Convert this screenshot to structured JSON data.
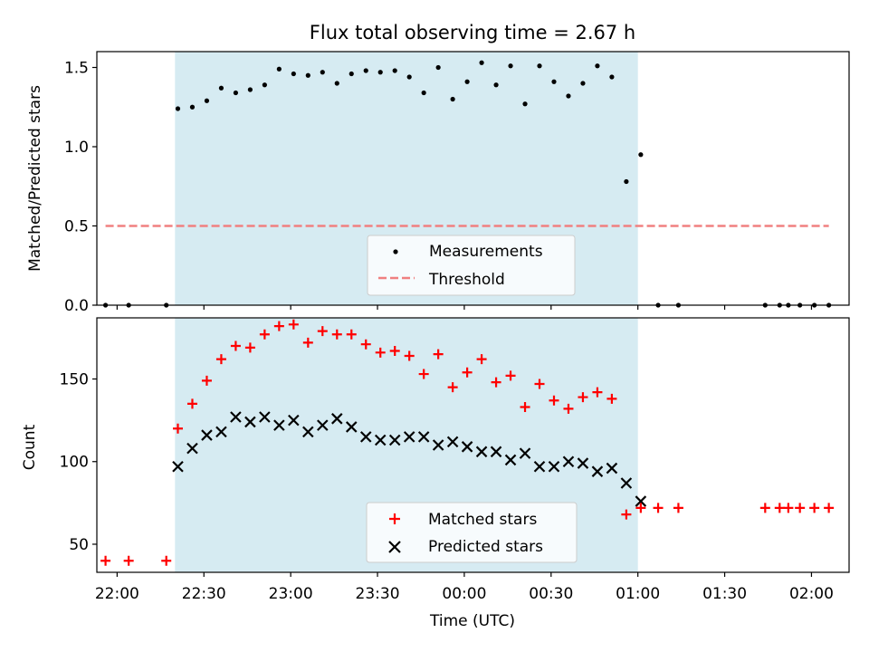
{
  "chart_data": [
    {
      "type": "scatter",
      "title": "Flux total observing time = 2.67 h",
      "xlabel": "",
      "ylabel": "Matched/Predicted stars",
      "xlim": [
        "21:53",
        "02:13"
      ],
      "ylim": [
        0,
        1.6
      ],
      "yticks": [
        "0.0",
        "0.5",
        "1.0",
        "1.5"
      ],
      "shaded_interval": [
        "22:20",
        "01:00"
      ],
      "legend_position": "lower center",
      "colors": {
        "shade": "#add8e6",
        "measurements": "#000000",
        "threshold": "#f08080"
      },
      "series": [
        {
          "name": "Measurements",
          "x": [
            "21:56",
            "22:04",
            "22:17",
            "22:21",
            "22:26",
            "22:31",
            "22:36",
            "22:41",
            "22:46",
            "22:51",
            "22:56",
            "23:01",
            "23:06",
            "23:11",
            "23:16",
            "23:21",
            "23:26",
            "23:31",
            "23:36",
            "23:41",
            "23:46",
            "23:51",
            "23:56",
            "00:01",
            "00:06",
            "00:11",
            "00:16",
            "00:21",
            "00:26",
            "00:31",
            "00:36",
            "00:41",
            "00:46",
            "00:51",
            "00:56",
            "01:01",
            "01:07",
            "01:14",
            "01:44",
            "01:49",
            "01:52",
            "01:56",
            "02:01",
            "02:06"
          ],
          "y": [
            0,
            0,
            0,
            1.24,
            1.25,
            1.29,
            1.37,
            1.34,
            1.36,
            1.39,
            1.49,
            1.46,
            1.45,
            1.47,
            1.4,
            1.46,
            1.48,
            1.47,
            1.48,
            1.44,
            1.34,
            1.5,
            1.3,
            1.41,
            1.53,
            1.39,
            1.51,
            1.27,
            1.51,
            1.41,
            1.32,
            1.4,
            1.51,
            1.44,
            0.78,
            0.95,
            0,
            0,
            0,
            0,
            0,
            0,
            0,
            0
          ]
        },
        {
          "name": "Threshold",
          "style": "dashed-line",
          "x": [
            "21:56",
            "02:06"
          ],
          "y": [
            0.5,
            0.5
          ]
        }
      ]
    },
    {
      "type": "scatter",
      "title": "",
      "xlabel": "Time (UTC)",
      "ylabel": "Count",
      "xlim": [
        "21:53",
        "02:13"
      ],
      "ylim": [
        33,
        187
      ],
      "yticks": [
        "50",
        "100",
        "150"
      ],
      "xticks": [
        "22:00",
        "22:30",
        "23:00",
        "23:30",
        "00:00",
        "00:30",
        "01:00",
        "01:30",
        "02:00"
      ],
      "shaded_interval": [
        "22:20",
        "01:00"
      ],
      "legend_position": "lower center",
      "colors": {
        "shade": "#add8e6",
        "matched": "#ff0000",
        "predicted": "#000000"
      },
      "series": [
        {
          "name": "Matched stars",
          "marker": "+",
          "x": [
            "21:56",
            "22:04",
            "22:17",
            "22:21",
            "22:26",
            "22:31",
            "22:36",
            "22:41",
            "22:46",
            "22:51",
            "22:56",
            "23:01",
            "23:06",
            "23:11",
            "23:16",
            "23:21",
            "23:26",
            "23:31",
            "23:36",
            "23:41",
            "23:46",
            "23:51",
            "23:56",
            "00:01",
            "00:06",
            "00:11",
            "00:16",
            "00:21",
            "00:26",
            "00:31",
            "00:36",
            "00:41",
            "00:46",
            "00:51",
            "00:56",
            "01:01",
            "01:07",
            "01:14",
            "01:44",
            "01:49",
            "01:52",
            "01:56",
            "02:01",
            "02:06"
          ],
          "y": [
            40,
            40,
            40,
            120,
            135,
            149,
            162,
            170,
            169,
            177,
            182,
            183,
            172,
            179,
            177,
            177,
            171,
            166,
            167,
            164,
            153,
            165,
            145,
            154,
            162,
            148,
            152,
            133,
            147,
            137,
            132,
            139,
            142,
            138,
            68,
            72,
            72,
            72,
            72,
            72,
            72,
            72,
            72,
            72
          ]
        },
        {
          "name": "Predicted stars",
          "marker": "x",
          "x": [
            "22:21",
            "22:26",
            "22:31",
            "22:36",
            "22:41",
            "22:46",
            "22:51",
            "22:56",
            "23:01",
            "23:06",
            "23:11",
            "23:16",
            "23:21",
            "23:26",
            "23:31",
            "23:36",
            "23:41",
            "23:46",
            "23:51",
            "23:56",
            "00:01",
            "00:06",
            "00:11",
            "00:16",
            "00:21",
            "00:26",
            "00:31",
            "00:36",
            "00:41",
            "00:46",
            "00:51",
            "00:56",
            "01:01"
          ],
          "y": [
            97,
            108,
            116,
            118,
            127,
            124,
            127,
            122,
            125,
            118,
            122,
            126,
            121,
            115,
            113,
            113,
            115,
            115,
            110,
            112,
            109,
            106,
            106,
            101,
            105,
            97,
            97,
            100,
            99,
            94,
            96,
            87,
            76
          ]
        }
      ]
    }
  ]
}
